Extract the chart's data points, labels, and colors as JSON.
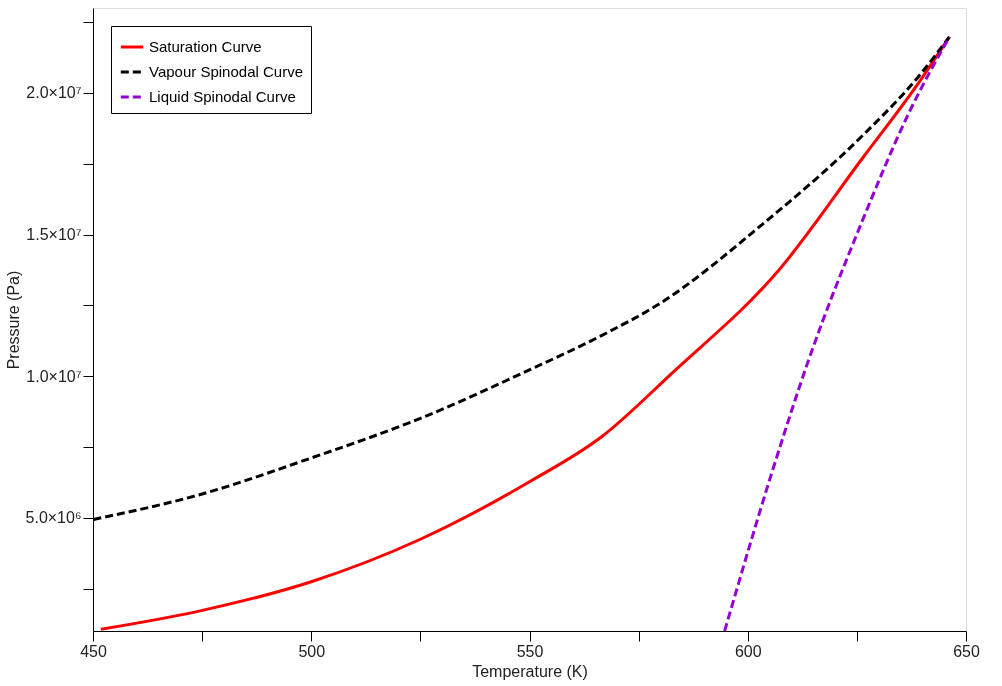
{
  "chart_data": {
    "type": "line",
    "xlabel": "Temperature (K)",
    "ylabel": "Pressure (Pa)",
    "xlim": [
      450,
      650
    ],
    "ylim": [
      1000000,
      23000000
    ],
    "xticks": [
      450,
      {
        "value": 475,
        "label": null
      },
      500,
      {
        "value": 525,
        "label": null
      },
      550,
      {
        "value": 575,
        "label": null
      },
      600,
      {
        "value": 625,
        "label": null
      },
      650
    ],
    "yticks": [
      {
        "value": 2500000,
        "label": null
      },
      {
        "value": 5000000,
        "label": "5.0×10⁶"
      },
      {
        "value": 7500000,
        "label": null
      },
      {
        "value": 10000000,
        "label": "1.0×10⁷"
      },
      {
        "value": 12500000,
        "label": null
      },
      {
        "value": 15000000,
        "label": "1.5×10⁷"
      },
      {
        "value": 17500000,
        "label": null
      },
      {
        "value": 20000000,
        "label": "2.0×10⁷"
      },
      {
        "value": 22500000,
        "label": null
      }
    ],
    "grid": false,
    "legend": "top left",
    "marker": "none",
    "series": [
      {
        "name": "Saturation Curve",
        "color": "#ff0000",
        "line_style": "solid",
        "x": [
          451.8,
          474.8,
          500,
          525,
          550.1,
          566.6,
          582.6,
          607.1,
          626.4,
          638.9,
          646.2
        ],
        "values": [
          1060000,
          1720000,
          2740000,
          4240000,
          6280000,
          7870000,
          10100000,
          13740000,
          17720000,
          20300000,
          21980000
        ]
      },
      {
        "name": "Vapour Spinodal Curve",
        "color": "#000000",
        "line_style": "dashed",
        "x": [
          450.1,
          474.8,
          500,
          525,
          550.1,
          566.6,
          579.4,
          603.5,
          626.4,
          638.9,
          646.2
        ],
        "values": [
          4940000,
          5830000,
          7110000,
          8510000,
          10230000,
          11440000,
          12520000,
          15380000,
          18510000,
          20540000,
          21980000
        ]
      },
      {
        "name": "Liquid Spinodal Curve",
        "color": "#9400d3",
        "line_style": "dashed",
        "x": [
          594.7,
          605.6,
          613.9,
          626.4,
          636.9,
          646.2
        ],
        "values": [
          1000000,
          6630000,
          10550000,
          15540000,
          19290000,
          21980000
        ]
      }
    ]
  }
}
